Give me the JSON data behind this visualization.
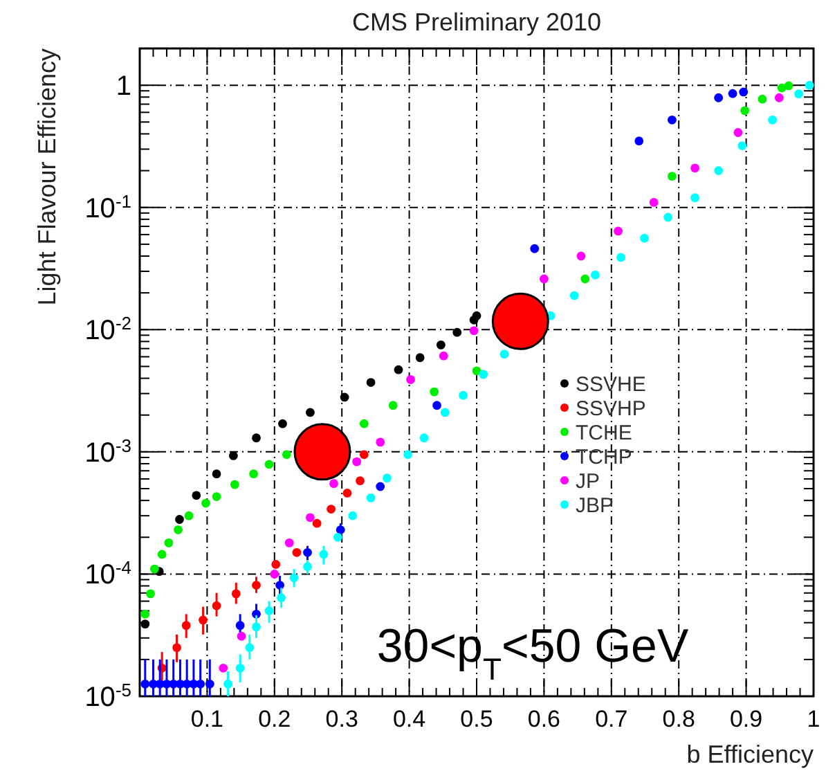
{
  "chart_data": {
    "type": "scatter",
    "title": "CMS Preliminary 2010",
    "xlabel": "b Efficiency",
    "ylabel": "Light Flavour Efficiency",
    "annotations": [
      "30<p$_{T}$<50 GeV"
    ],
    "log": "y",
    "grid": true,
    "legend": "right",
    "marker": "circle",
    "xlim": [
      0,
      1
    ],
    "ylim": [
      1e-05,
      2
    ],
    "xticks": [
      0.1,
      0.2,
      0.3,
      0.4,
      0.5,
      0.6,
      0.7,
      0.8,
      0.9,
      1
    ],
    "yticks": [
      {
        "value": 1e-05,
        "label": "10$^{-5}$"
      },
      {
        "value": 0.0001,
        "label": "10$^{-4}$"
      },
      {
        "value": 0.001,
        "label": "10$^{-3}$"
      },
      {
        "value": 0.01,
        "label": "10$^{-2}$"
      },
      {
        "value": 0.1,
        "label": "10$^{-1}$"
      },
      1
    ],
    "series": [
      {
        "name": "SSVHE",
        "color": "#000000",
        "x": [
          0.008,
          0.029,
          0.059,
          0.084,
          0.114,
          0.139,
          0.173,
          0.212,
          0.253,
          0.304,
          0.343,
          0.384,
          0.416,
          0.447,
          0.471,
          0.496,
          0.5
        ],
        "values": [
          3.9e-05,
          0.000105,
          0.00028,
          0.00044,
          0.00066,
          0.00093,
          0.0013,
          0.0017,
          0.0021,
          0.0028,
          0.0037,
          0.0047,
          0.0059,
          0.0075,
          0.0095,
          0.012,
          0.013
        ]
      },
      {
        "name": "SSVHP",
        "color": "#ff0000",
        "x": [
          0.033,
          0.055,
          0.069,
          0.094,
          0.114,
          0.143,
          0.173,
          0.202,
          0.233,
          0.263,
          0.284,
          0.308,
          0.327,
          0.333
        ],
        "values": [
          1.7e-05,
          2.5e-05,
          3.8e-05,
          4.2e-05,
          5.5e-05,
          6.9e-05,
          8.1e-05,
          0.00012,
          0.00015,
          0.00026,
          0.00034,
          0.00046,
          0.00058,
          0.00095
        ],
        "errors": [
          [
            1.2e-05,
            2.3e-05
          ],
          [
            1.9e-05,
            3.2e-05
          ],
          [
            3e-05,
            4.7e-05
          ],
          [
            3.2e-05,
            5.4e-05
          ],
          [
            4.5e-05,
            7e-05
          ],
          [
            5.7e-05,
            8.5e-05
          ],
          [
            7e-05,
            9.5e-05
          ],
          null,
          null,
          null,
          null,
          null,
          null,
          null
        ]
      },
      {
        "name": "TCHE",
        "color": "#00ee00",
        "x": [
          0.008,
          0.016,
          0.022,
          0.033,
          0.043,
          0.057,
          0.073,
          0.098,
          0.114,
          0.141,
          0.169,
          0.192,
          0.218,
          0.333,
          0.376,
          0.437,
          0.5,
          0.661,
          0.79,
          0.898,
          0.924,
          0.953,
          0.963
        ],
        "values": [
          4.7e-05,
          6.9e-05,
          0.00011,
          0.000145,
          0.00018,
          0.00023,
          0.0003,
          0.00038,
          0.00043,
          0.00054,
          0.00066,
          0.00079,
          0.00095,
          0.0017,
          0.0024,
          0.0031,
          0.0046,
          0.026,
          0.18,
          0.62,
          0.77,
          0.95,
          0.99
        ]
      },
      {
        "name": "TCHP",
        "color": "#0000ff",
        "x": [
          0.008,
          0.02,
          0.03,
          0.04,
          0.05,
          0.06,
          0.07,
          0.08,
          0.09,
          0.104,
          0.149,
          0.173,
          0.208,
          0.249,
          0.298,
          0.357,
          0.441,
          0.586,
          0.741,
          0.79,
          0.859,
          0.88,
          0.896
        ],
        "values": [
          1.26e-05,
          1.26e-05,
          1.26e-05,
          1.26e-05,
          1.26e-05,
          1.26e-05,
          1.26e-05,
          1.26e-05,
          1.26e-05,
          1.26e-05,
          3.8e-05,
          4.7e-05,
          8.1e-05,
          0.00015,
          0.00023,
          0.00052,
          0.0024,
          0.046,
          0.35,
          0.52,
          0.79,
          0.855,
          0.88
        ],
        "errors": [
          [
            1e-05,
            2e-05
          ],
          [
            1e-05,
            2e-05
          ],
          [
            1e-05,
            2e-05
          ],
          [
            1e-05,
            2e-05
          ],
          [
            1e-05,
            2e-05
          ],
          [
            1e-05,
            2e-05
          ],
          [
            1e-05,
            2e-05
          ],
          [
            1e-05,
            2e-05
          ],
          [
            1e-05,
            2e-05
          ],
          [
            1e-05,
            2e-05
          ],
          [
            3e-05,
            4.7e-05
          ],
          [
            3.8e-05,
            5.7e-05
          ],
          [
            6.6e-05,
            9.7e-05
          ],
          [
            0.00013,
            0.00017
          ],
          [
            0.0002,
            0.00026
          ],
          null,
          null,
          null,
          null,
          null,
          null,
          null,
          null
        ]
      },
      {
        "name": "JP",
        "color": "#ff00ff",
        "x": [
          0.124,
          0.151,
          0.2,
          0.222,
          0.253,
          0.288,
          0.322,
          0.357,
          0.402,
          0.451,
          0.496,
          0.6,
          0.655,
          0.71,
          0.763,
          0.824,
          0.888,
          0.949
        ],
        "values": [
          1.7e-05,
          3.1e-05,
          0.0001,
          0.00018,
          0.00029,
          0.00055,
          0.00083,
          0.0012,
          0.0039,
          0.0061,
          0.0098,
          0.026,
          0.04,
          0.064,
          0.11,
          0.21,
          0.41,
          0.79
        ]
      },
      {
        "name": "JBP",
        "color": "#00ffff",
        "x": [
          0.131,
          0.149,
          0.163,
          0.173,
          0.192,
          0.21,
          0.229,
          0.249,
          0.273,
          0.294,
          0.316,
          0.343,
          0.367,
          0.398,
          0.422,
          0.453,
          0.48,
          0.51,
          0.541,
          0.61,
          0.645,
          0.676,
          0.714,
          0.749,
          0.784,
          0.824,
          0.859,
          0.894,
          0.939,
          0.978,
          0.994
        ],
        "values": [
          1.26e-05,
          1.7e-05,
          2.5e-05,
          3.7e-05,
          5e-05,
          6.4e-05,
          9.3e-05,
          0.000115,
          0.000145,
          0.0002,
          0.0003,
          0.00042,
          0.00061,
          0.00095,
          0.0013,
          0.0021,
          0.0029,
          0.0043,
          0.0063,
          0.013,
          0.019,
          0.028,
          0.039,
          0.056,
          0.083,
          0.12,
          0.2,
          0.32,
          0.52,
          0.85,
          1
        ],
        "errors": [
          [
            1e-05,
            1.6e-05
          ],
          [
            1.3e-05,
            2.2e-05
          ],
          [
            2e-05,
            3.2e-05
          ],
          [
            3e-05,
            4.6e-05
          ],
          [
            4e-05,
            6e-05
          ],
          [
            5.3e-05,
            7.7e-05
          ],
          [
            7.8e-05,
            0.00011
          ],
          [
            0.0001,
            0.00013
          ],
          [
            0.00012,
            0.00017
          ],
          null,
          null,
          null,
          null,
          null,
          null,
          null,
          null,
          null,
          null,
          null,
          null,
          null,
          null,
          null,
          null,
          null,
          null,
          null,
          null,
          null,
          null
        ]
      },
      {
        "type": "bubble",
        "color": "#ff0000",
        "x": [
          0.271,
          0.565
        ],
        "values": [
          0.001,
          0.0117
        ],
        "sizes": [
          1,
          1
        ]
      }
    ]
  }
}
